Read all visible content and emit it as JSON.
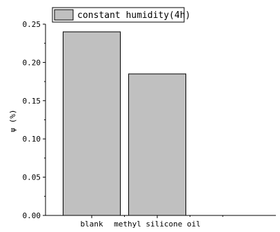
{
  "chart_data": {
    "type": "bar",
    "categories": [
      "blank",
      "methyl silicone oil"
    ],
    "series": [
      {
        "name": "constant humidity(4h)",
        "values": [
          0.24,
          0.185
        ]
      }
    ],
    "ylabel": "ψ (%)",
    "xlabel": "",
    "ylim": [
      0,
      0.25
    ],
    "yticks": [
      "0.00",
      "0.05",
      "0.10",
      "0.15",
      "0.20",
      "0.25"
    ],
    "grid": false,
    "legend_placement": "top-left",
    "bar_color": "#c0c0c0",
    "bar_edge_color": "#000000"
  }
}
